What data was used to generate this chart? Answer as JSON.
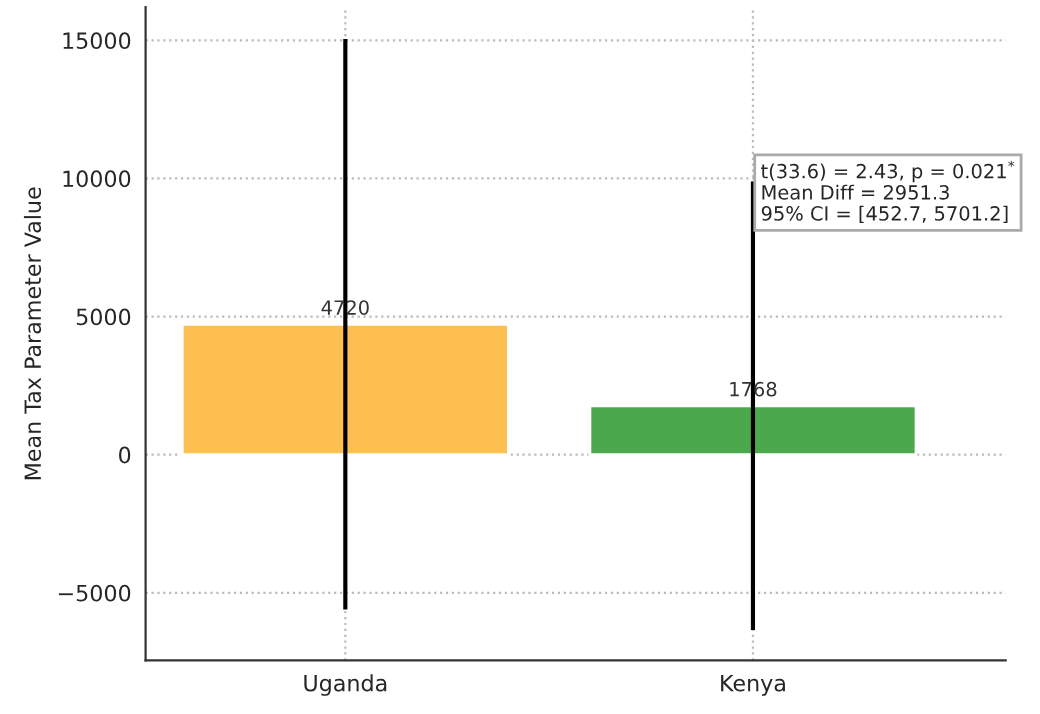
{
  "chart_data": {
    "type": "bar",
    "ylabel": "Mean Tax Parameter Value",
    "categories": [
      "Uganda",
      "Kenya"
    ],
    "values": [
      4720,
      1768
    ],
    "colors": [
      "#fdbf4f",
      "#4ca84c"
    ],
    "errors": [
      10330,
      8120
    ],
    "data_labels": true,
    "ylim": [
      -7450,
      16200
    ],
    "yticks": [
      -5000,
      0,
      5000,
      10000,
      15000
    ],
    "grid": true,
    "annotations": [
      "t(33.6) = 2.43, p = 0.021$^{*}$\nMean Diff = 2951.3\n95% CI = [452.7, 5701.2]"
    ]
  }
}
